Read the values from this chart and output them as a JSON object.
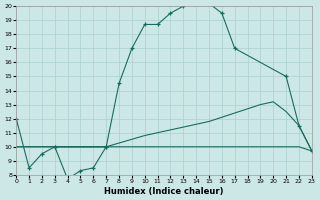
{
  "xlabel": "Humidex (Indice chaleur)",
  "bg_color": "#cce8e6",
  "grid_color": "#aad0ce",
  "line_color": "#1a6b5e",
  "xlim": [
    0,
    23
  ],
  "ylim": [
    8,
    20
  ],
  "line1_x": [
    0,
    1,
    2,
    3,
    4,
    5,
    6,
    7
  ],
  "line1_y": [
    12,
    8.5,
    9.5,
    10,
    7.7,
    8.3,
    8.5,
    10
  ],
  "line2_x": [
    3,
    7,
    8,
    9,
    10,
    11,
    12,
    13,
    14,
    15,
    16,
    17,
    21,
    22,
    23
  ],
  "line2_y": [
    10,
    10,
    14.5,
    17,
    18.7,
    18.7,
    19.5,
    20,
    20.2,
    20.2,
    19.5,
    17,
    15,
    11.5,
    9.7
  ],
  "line3_x": [
    0,
    3,
    7,
    10,
    15,
    19,
    20,
    21,
    22,
    23
  ],
  "line3_y": [
    10,
    10,
    10,
    10.8,
    11.8,
    13.0,
    13.2,
    12.5,
    11.5,
    9.7
  ],
  "line4_x": [
    0,
    3,
    7,
    10,
    15,
    20,
    22,
    23
  ],
  "line4_y": [
    10,
    10,
    10,
    10,
    10,
    10,
    10,
    9.7
  ]
}
